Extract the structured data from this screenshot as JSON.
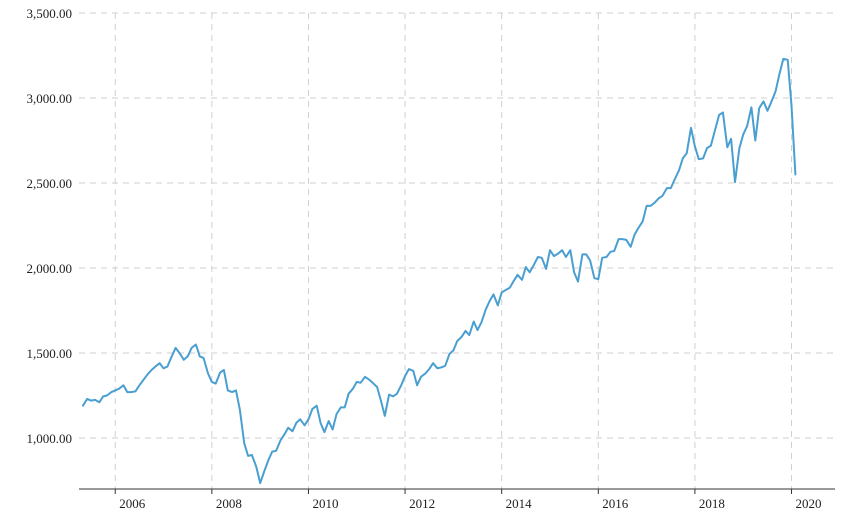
{
  "chart_data": {
    "type": "line",
    "title": "",
    "xlabel": "",
    "ylabel": "",
    "grid": true,
    "legend": "none",
    "colors": {
      "line": "#4a9fd1",
      "grid": "#cfcfcf",
      "text": "#222222"
    },
    "xlim": [
      2005.25,
      2020.9
    ],
    "ylim": [
      700,
      3500
    ],
    "y_ticks": [
      {
        "value": 1000,
        "label": "1,000.00"
      },
      {
        "value": 1500,
        "label": "1,500.00"
      },
      {
        "value": 2000,
        "label": "2,000.00"
      },
      {
        "value": 2500,
        "label": "2,500.00"
      },
      {
        "value": 3000,
        "label": "3,000.00"
      },
      {
        "value": 3500,
        "label": "3,500.00"
      }
    ],
    "x_ticks": [
      {
        "value": 2006,
        "label": "2006"
      },
      {
        "value": 2008,
        "label": "2008"
      },
      {
        "value": 2010,
        "label": "2010"
      },
      {
        "value": 2012,
        "label": "2012"
      },
      {
        "value": 2014,
        "label": "2014"
      },
      {
        "value": 2016,
        "label": "2016"
      },
      {
        "value": 2018,
        "label": "2018"
      },
      {
        "value": 2020,
        "label": "2020"
      }
    ],
    "series": [
      {
        "points": [
          [
            2005.33,
            1190
          ],
          [
            2005.42,
            1230
          ],
          [
            2005.5,
            1220
          ],
          [
            2005.58,
            1225
          ],
          [
            2005.67,
            1210
          ],
          [
            2005.75,
            1245
          ],
          [
            2005.83,
            1250
          ],
          [
            2005.92,
            1270
          ],
          [
            2006.0,
            1280
          ],
          [
            2006.08,
            1290
          ],
          [
            2006.17,
            1310
          ],
          [
            2006.25,
            1270
          ],
          [
            2006.33,
            1270
          ],
          [
            2006.42,
            1275
          ],
          [
            2006.5,
            1310
          ],
          [
            2006.58,
            1340
          ],
          [
            2006.67,
            1375
          ],
          [
            2006.75,
            1400
          ],
          [
            2006.83,
            1420
          ],
          [
            2006.92,
            1440
          ],
          [
            2007.0,
            1410
          ],
          [
            2007.08,
            1420
          ],
          [
            2007.17,
            1480
          ],
          [
            2007.25,
            1530
          ],
          [
            2007.33,
            1500
          ],
          [
            2007.42,
            1460
          ],
          [
            2007.5,
            1480
          ],
          [
            2007.58,
            1530
          ],
          [
            2007.67,
            1550
          ],
          [
            2007.75,
            1480
          ],
          [
            2007.83,
            1470
          ],
          [
            2007.92,
            1380
          ],
          [
            2008.0,
            1330
          ],
          [
            2008.08,
            1320
          ],
          [
            2008.17,
            1385
          ],
          [
            2008.25,
            1400
          ],
          [
            2008.33,
            1280
          ],
          [
            2008.42,
            1270
          ],
          [
            2008.5,
            1280
          ],
          [
            2008.58,
            1165
          ],
          [
            2008.67,
            970
          ],
          [
            2008.75,
            895
          ],
          [
            2008.83,
            900
          ],
          [
            2008.92,
            830
          ],
          [
            2009.0,
            735
          ],
          [
            2009.08,
            800
          ],
          [
            2009.17,
            870
          ],
          [
            2009.25,
            920
          ],
          [
            2009.33,
            925
          ],
          [
            2009.42,
            985
          ],
          [
            2009.5,
            1020
          ],
          [
            2009.58,
            1060
          ],
          [
            2009.67,
            1040
          ],
          [
            2009.75,
            1090
          ],
          [
            2009.83,
            1110
          ],
          [
            2009.92,
            1075
          ],
          [
            2010.0,
            1110
          ],
          [
            2010.08,
            1170
          ],
          [
            2010.17,
            1190
          ],
          [
            2010.25,
            1090
          ],
          [
            2010.33,
            1035
          ],
          [
            2010.42,
            1100
          ],
          [
            2010.5,
            1050
          ],
          [
            2010.58,
            1140
          ],
          [
            2010.67,
            1180
          ],
          [
            2010.75,
            1180
          ],
          [
            2010.83,
            1260
          ],
          [
            2010.92,
            1290
          ],
          [
            2011.0,
            1330
          ],
          [
            2011.08,
            1325
          ],
          [
            2011.17,
            1360
          ],
          [
            2011.25,
            1345
          ],
          [
            2011.33,
            1325
          ],
          [
            2011.42,
            1300
          ],
          [
            2011.5,
            1220
          ],
          [
            2011.58,
            1130
          ],
          [
            2011.67,
            1255
          ],
          [
            2011.75,
            1245
          ],
          [
            2011.83,
            1260
          ],
          [
            2011.92,
            1310
          ],
          [
            2012.0,
            1365
          ],
          [
            2012.08,
            1405
          ],
          [
            2012.17,
            1395
          ],
          [
            2012.25,
            1310
          ],
          [
            2012.33,
            1360
          ],
          [
            2012.42,
            1380
          ],
          [
            2012.5,
            1405
          ],
          [
            2012.58,
            1440
          ],
          [
            2012.67,
            1410
          ],
          [
            2012.75,
            1415
          ],
          [
            2012.83,
            1425
          ],
          [
            2012.92,
            1495
          ],
          [
            2013.0,
            1515
          ],
          [
            2013.08,
            1570
          ],
          [
            2013.17,
            1595
          ],
          [
            2013.25,
            1630
          ],
          [
            2013.33,
            1605
          ],
          [
            2013.42,
            1685
          ],
          [
            2013.5,
            1635
          ],
          [
            2013.58,
            1680
          ],
          [
            2013.67,
            1755
          ],
          [
            2013.75,
            1805
          ],
          [
            2013.83,
            1845
          ],
          [
            2013.92,
            1780
          ],
          [
            2014.0,
            1855
          ],
          [
            2014.08,
            1870
          ],
          [
            2014.17,
            1885
          ],
          [
            2014.25,
            1925
          ],
          [
            2014.33,
            1960
          ],
          [
            2014.42,
            1930
          ],
          [
            2014.5,
            2005
          ],
          [
            2014.58,
            1975
          ],
          [
            2014.67,
            2020
          ],
          [
            2014.75,
            2065
          ],
          [
            2014.83,
            2060
          ],
          [
            2014.92,
            1995
          ],
          [
            2015.0,
            2105
          ],
          [
            2015.08,
            2070
          ],
          [
            2015.17,
            2085
          ],
          [
            2015.25,
            2105
          ],
          [
            2015.33,
            2065
          ],
          [
            2015.42,
            2105
          ],
          [
            2015.5,
            1975
          ],
          [
            2015.58,
            1920
          ],
          [
            2015.67,
            2080
          ],
          [
            2015.75,
            2080
          ],
          [
            2015.83,
            2045
          ],
          [
            2015.92,
            1940
          ],
          [
            2016.0,
            1935
          ],
          [
            2016.08,
            2060
          ],
          [
            2016.17,
            2065
          ],
          [
            2016.25,
            2095
          ],
          [
            2016.33,
            2100
          ],
          [
            2016.42,
            2170
          ],
          [
            2016.5,
            2170
          ],
          [
            2016.58,
            2165
          ],
          [
            2016.67,
            2125
          ],
          [
            2016.75,
            2195
          ],
          [
            2016.83,
            2235
          ],
          [
            2016.92,
            2275
          ],
          [
            2017.0,
            2365
          ],
          [
            2017.08,
            2365
          ],
          [
            2017.17,
            2385
          ],
          [
            2017.25,
            2410
          ],
          [
            2017.33,
            2425
          ],
          [
            2017.42,
            2470
          ],
          [
            2017.5,
            2470
          ],
          [
            2017.58,
            2520
          ],
          [
            2017.67,
            2575
          ],
          [
            2017.75,
            2645
          ],
          [
            2017.83,
            2675
          ],
          [
            2017.92,
            2825
          ],
          [
            2018.0,
            2715
          ],
          [
            2018.08,
            2640
          ],
          [
            2018.17,
            2645
          ],
          [
            2018.25,
            2705
          ],
          [
            2018.33,
            2720
          ],
          [
            2018.42,
            2815
          ],
          [
            2018.5,
            2900
          ],
          [
            2018.58,
            2915
          ],
          [
            2018.67,
            2710
          ],
          [
            2018.75,
            2760
          ],
          [
            2018.83,
            2505
          ],
          [
            2018.92,
            2705
          ],
          [
            2019.0,
            2785
          ],
          [
            2019.08,
            2835
          ],
          [
            2019.17,
            2945
          ],
          [
            2019.25,
            2750
          ],
          [
            2019.33,
            2940
          ],
          [
            2019.42,
            2980
          ],
          [
            2019.5,
            2925
          ],
          [
            2019.58,
            2975
          ],
          [
            2019.67,
            3040
          ],
          [
            2019.75,
            3140
          ],
          [
            2019.83,
            3230
          ],
          [
            2019.92,
            3225
          ],
          [
            2020.0,
            2955
          ],
          [
            2020.08,
            2550
          ]
        ]
      }
    ]
  }
}
